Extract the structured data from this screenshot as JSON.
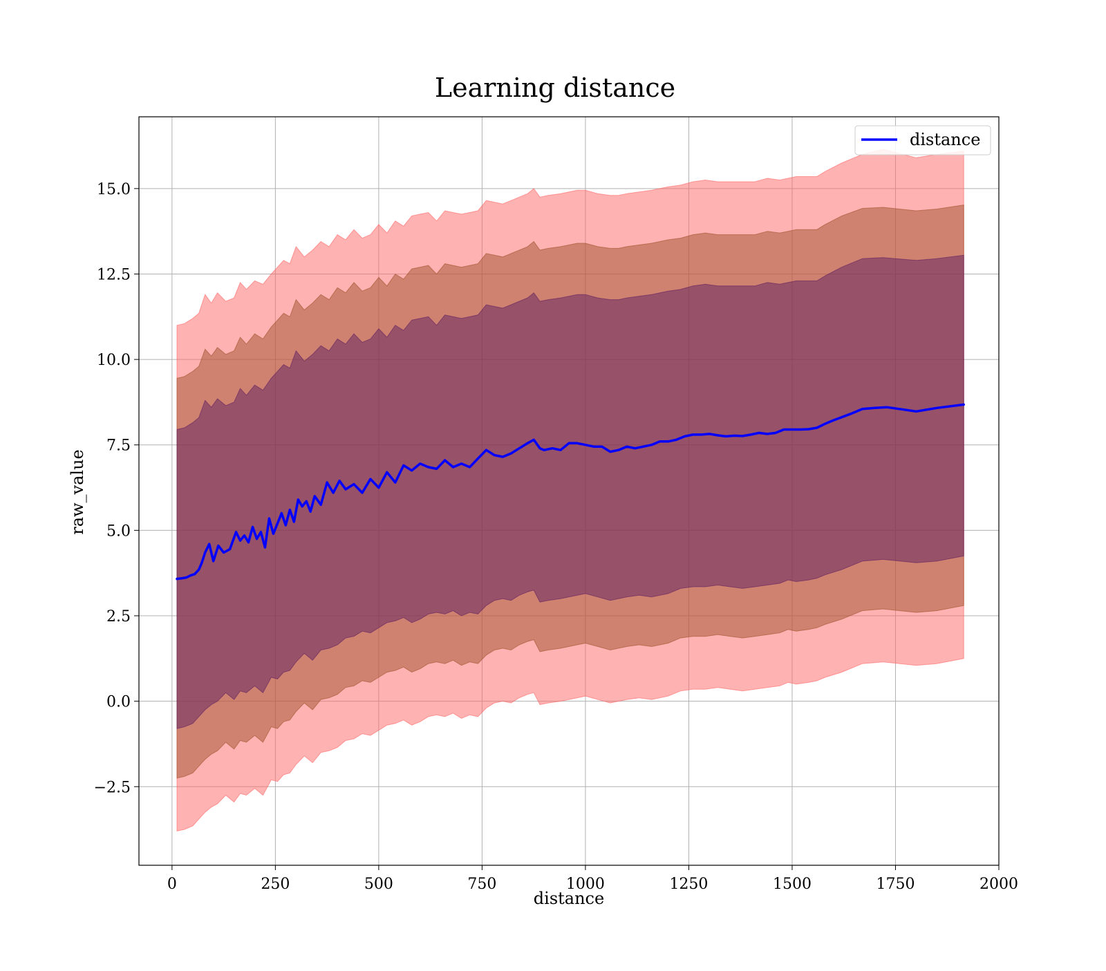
{
  "chart_data": {
    "type": "area",
    "title": "Learning distance",
    "xlabel": "distance",
    "ylabel": "raw_value",
    "xlim": [
      -80,
      2000
    ],
    "ylim": [
      -4.8,
      17.1
    ],
    "xticks": [
      0,
      250,
      500,
      750,
      1000,
      1250,
      1500,
      1750,
      2000
    ],
    "xtick_labels": [
      "0",
      "250",
      "500",
      "750",
      "1000",
      "1250",
      "1500",
      "1750",
      "2000"
    ],
    "yticks": [
      -2.5,
      0.0,
      2.5,
      5.0,
      7.5,
      10.0,
      12.5,
      15.0
    ],
    "ytick_labels": [
      "−2.5",
      "0.0",
      "2.5",
      "5.0",
      "7.5",
      "10.0",
      "12.5",
      "15.0"
    ],
    "grid": true,
    "legend_position": "top-right",
    "series": [
      {
        "name": "distance",
        "color": "#0000ff",
        "x": [
          12,
          25,
          35,
          45,
          55,
          65,
          72,
          80,
          90,
          100,
          112,
          125,
          140,
          155,
          165,
          175,
          185,
          195,
          205,
          215,
          225,
          235,
          245,
          255,
          265,
          275,
          285,
          295,
          305,
          315,
          325,
          335,
          345,
          360,
          375,
          390,
          405,
          420,
          440,
          460,
          480,
          500,
          520,
          540,
          560,
          580,
          600,
          620,
          640,
          660,
          680,
          700,
          720,
          740,
          760,
          780,
          800,
          820,
          840,
          860,
          875,
          890,
          900,
          920,
          940,
          960,
          980,
          1000,
          1020,
          1040,
          1060,
          1080,
          1100,
          1120,
          1140,
          1160,
          1180,
          1200,
          1220,
          1240,
          1260,
          1280,
          1300,
          1320,
          1340,
          1360,
          1380,
          1400,
          1420,
          1440,
          1460,
          1480,
          1500,
          1520,
          1540,
          1560,
          1580,
          1600,
          1640,
          1670,
          1700,
          1730,
          1760,
          1800,
          1850,
          1915
        ],
        "y": [
          3.58,
          3.6,
          3.62,
          3.68,
          3.72,
          3.85,
          4.05,
          4.35,
          4.6,
          4.1,
          4.55,
          4.35,
          4.45,
          4.95,
          4.7,
          4.85,
          4.65,
          5.1,
          4.75,
          4.95,
          4.5,
          5.35,
          4.9,
          5.2,
          5.5,
          5.15,
          5.6,
          5.25,
          5.9,
          5.7,
          5.85,
          5.55,
          6.0,
          5.75,
          6.4,
          6.1,
          6.45,
          6.2,
          6.35,
          6.1,
          6.5,
          6.25,
          6.7,
          6.4,
          6.9,
          6.75,
          6.95,
          6.85,
          6.8,
          7.05,
          6.85,
          6.95,
          6.85,
          7.1,
          7.35,
          7.2,
          7.15,
          7.25,
          7.4,
          7.55,
          7.65,
          7.4,
          7.35,
          7.4,
          7.35,
          7.55,
          7.55,
          7.5,
          7.45,
          7.45,
          7.3,
          7.35,
          7.45,
          7.4,
          7.45,
          7.5,
          7.6,
          7.6,
          7.65,
          7.75,
          7.8,
          7.8,
          7.82,
          7.78,
          7.75,
          7.77,
          7.76,
          7.8,
          7.85,
          7.82,
          7.85,
          7.95,
          7.95,
          7.95,
          7.96,
          8.0,
          8.12,
          8.22,
          8.4,
          8.55,
          8.58,
          8.6,
          8.55,
          8.48,
          8.58,
          8.68
        ]
      }
    ],
    "bands": [
      {
        "name": "",
        "color": "#ff6666",
        "opacity": 0.5,
        "x": [
          12,
          30,
          50,
          65,
          80,
          95,
          110,
          130,
          150,
          165,
          180,
          200,
          220,
          240,
          255,
          270,
          285,
          300,
          320,
          340,
          360,
          380,
          400,
          420,
          440,
          460,
          480,
          500,
          520,
          540,
          560,
          580,
          600,
          620,
          640,
          660,
          680,
          700,
          720,
          740,
          760,
          780,
          800,
          820,
          840,
          860,
          875,
          890,
          910,
          940,
          980,
          1000,
          1030,
          1060,
          1080,
          1100,
          1130,
          1160,
          1200,
          1230,
          1260,
          1290,
          1320,
          1350,
          1380,
          1410,
          1440,
          1470,
          1490,
          1510,
          1540,
          1560,
          1580,
          1620,
          1670,
          1720,
          1800,
          1850,
          1915
        ],
        "upper": [
          11.0,
          11.05,
          11.2,
          11.35,
          11.9,
          11.65,
          11.95,
          11.7,
          11.8,
          12.25,
          12.05,
          12.3,
          12.2,
          12.5,
          12.7,
          12.9,
          12.8,
          13.3,
          13.0,
          13.2,
          13.45,
          13.3,
          13.65,
          13.5,
          13.8,
          13.55,
          13.65,
          13.95,
          13.7,
          14.05,
          13.9,
          14.2,
          14.25,
          14.3,
          14.05,
          14.35,
          14.3,
          14.25,
          14.3,
          14.35,
          14.65,
          14.6,
          14.55,
          14.65,
          14.75,
          14.85,
          15.0,
          14.75,
          14.8,
          14.85,
          14.95,
          14.95,
          14.85,
          14.8,
          14.8,
          14.85,
          14.9,
          14.95,
          15.05,
          15.1,
          15.2,
          15.25,
          15.2,
          15.2,
          15.2,
          15.2,
          15.3,
          15.25,
          15.3,
          15.35,
          15.35,
          15.35,
          15.5,
          15.75,
          16.0,
          16.15,
          15.9,
          16.0,
          16.1
        ],
        "lower": [
          -3.8,
          -3.75,
          -3.65,
          -3.45,
          -3.25,
          -3.1,
          -3.0,
          -2.75,
          -2.95,
          -2.7,
          -2.75,
          -2.55,
          -2.75,
          -2.3,
          -2.35,
          -2.15,
          -2.1,
          -1.85,
          -1.6,
          -1.8,
          -1.5,
          -1.45,
          -1.35,
          -1.15,
          -1.1,
          -0.95,
          -1.0,
          -0.85,
          -0.7,
          -0.65,
          -0.55,
          -0.7,
          -0.6,
          -0.45,
          -0.4,
          -0.45,
          -0.35,
          -0.5,
          -0.4,
          -0.45,
          -0.2,
          -0.05,
          0.0,
          -0.05,
          0.1,
          0.2,
          0.25,
          -0.1,
          -0.05,
          0.0,
          0.1,
          0.15,
          0.05,
          -0.05,
          0.0,
          0.05,
          0.1,
          0.05,
          0.15,
          0.3,
          0.35,
          0.35,
          0.4,
          0.35,
          0.3,
          0.35,
          0.4,
          0.45,
          0.55,
          0.5,
          0.55,
          0.6,
          0.7,
          0.85,
          1.1,
          1.15,
          1.05,
          1.1,
          1.25
        ]
      },
      {
        "name": "",
        "color": "#a0522d",
        "opacity": 0.5,
        "x": [
          12,
          30,
          50,
          65,
          80,
          95,
          110,
          130,
          150,
          165,
          180,
          200,
          220,
          240,
          255,
          270,
          285,
          300,
          320,
          340,
          360,
          380,
          400,
          420,
          440,
          460,
          480,
          500,
          520,
          540,
          560,
          580,
          600,
          620,
          640,
          660,
          680,
          700,
          720,
          740,
          760,
          780,
          800,
          820,
          840,
          860,
          875,
          890,
          910,
          940,
          980,
          1000,
          1030,
          1060,
          1080,
          1100,
          1130,
          1160,
          1200,
          1230,
          1260,
          1290,
          1320,
          1350,
          1380,
          1410,
          1440,
          1470,
          1490,
          1510,
          1540,
          1560,
          1580,
          1620,
          1670,
          1720,
          1800,
          1850,
          1915
        ],
        "upper": [
          9.45,
          9.5,
          9.65,
          9.8,
          10.3,
          10.1,
          10.35,
          10.15,
          10.25,
          10.65,
          10.45,
          10.75,
          10.6,
          10.95,
          11.15,
          11.35,
          11.25,
          11.75,
          11.45,
          11.65,
          11.9,
          11.75,
          12.1,
          11.95,
          12.25,
          12.0,
          12.1,
          12.4,
          12.15,
          12.5,
          12.35,
          12.65,
          12.7,
          12.75,
          12.5,
          12.8,
          12.75,
          12.7,
          12.75,
          12.8,
          13.1,
          13.05,
          13.0,
          13.1,
          13.2,
          13.3,
          13.45,
          13.2,
          13.25,
          13.3,
          13.4,
          13.4,
          13.3,
          13.25,
          13.25,
          13.3,
          13.35,
          13.4,
          13.5,
          13.55,
          13.65,
          13.7,
          13.65,
          13.65,
          13.65,
          13.65,
          13.75,
          13.7,
          13.75,
          13.8,
          13.8,
          13.8,
          13.95,
          14.2,
          14.42,
          14.45,
          14.35,
          14.4,
          14.52
        ],
        "lower": [
          -2.25,
          -2.2,
          -2.1,
          -1.9,
          -1.7,
          -1.55,
          -1.45,
          -1.2,
          -1.4,
          -1.15,
          -1.2,
          -1.0,
          -1.2,
          -0.75,
          -0.8,
          -0.6,
          -0.55,
          -0.3,
          -0.05,
          -0.25,
          0.05,
          0.1,
          0.2,
          0.4,
          0.45,
          0.6,
          0.55,
          0.7,
          0.85,
          0.9,
          1.0,
          0.85,
          0.95,
          1.1,
          1.15,
          1.1,
          1.2,
          1.05,
          1.15,
          1.1,
          1.35,
          1.5,
          1.55,
          1.5,
          1.65,
          1.75,
          1.8,
          1.45,
          1.5,
          1.55,
          1.65,
          1.7,
          1.6,
          1.5,
          1.55,
          1.6,
          1.65,
          1.6,
          1.7,
          1.85,
          1.9,
          1.9,
          1.95,
          1.9,
          1.85,
          1.9,
          1.95,
          2.0,
          2.1,
          2.05,
          2.1,
          2.15,
          2.25,
          2.4,
          2.65,
          2.7,
          2.6,
          2.65,
          2.8
        ]
      },
      {
        "name": "",
        "color": "#602060",
        "opacity": 0.5,
        "x": [
          12,
          30,
          50,
          65,
          80,
          95,
          110,
          130,
          150,
          165,
          180,
          200,
          220,
          240,
          255,
          270,
          285,
          300,
          320,
          340,
          360,
          380,
          400,
          420,
          440,
          460,
          480,
          500,
          520,
          540,
          560,
          580,
          600,
          620,
          640,
          660,
          680,
          700,
          720,
          740,
          760,
          780,
          800,
          820,
          840,
          860,
          875,
          890,
          910,
          940,
          980,
          1000,
          1030,
          1060,
          1080,
          1100,
          1130,
          1160,
          1200,
          1230,
          1260,
          1290,
          1320,
          1350,
          1380,
          1410,
          1440,
          1470,
          1490,
          1510,
          1540,
          1560,
          1580,
          1620,
          1670,
          1720,
          1800,
          1850,
          1915
        ],
        "upper": [
          7.95,
          8.0,
          8.15,
          8.3,
          8.8,
          8.6,
          8.85,
          8.65,
          8.75,
          9.15,
          8.95,
          9.25,
          9.1,
          9.45,
          9.65,
          9.85,
          9.75,
          10.25,
          9.95,
          10.15,
          10.4,
          10.25,
          10.6,
          10.45,
          10.75,
          10.5,
          10.6,
          10.9,
          10.65,
          11.0,
          10.85,
          11.15,
          11.2,
          11.25,
          11.0,
          11.3,
          11.25,
          11.2,
          11.25,
          11.3,
          11.6,
          11.55,
          11.5,
          11.6,
          11.7,
          11.8,
          11.95,
          11.7,
          11.75,
          11.8,
          11.9,
          11.9,
          11.8,
          11.75,
          11.75,
          11.8,
          11.85,
          11.9,
          12.0,
          12.05,
          12.15,
          12.2,
          12.15,
          12.15,
          12.15,
          12.15,
          12.25,
          12.2,
          12.25,
          12.3,
          12.3,
          12.3,
          12.45,
          12.7,
          12.95,
          12.98,
          12.9,
          12.95,
          13.05
        ],
        "lower": [
          -0.8,
          -0.75,
          -0.65,
          -0.45,
          -0.25,
          -0.1,
          0.0,
          0.25,
          0.05,
          0.3,
          0.25,
          0.45,
          0.25,
          0.7,
          0.65,
          0.85,
          0.9,
          1.15,
          1.4,
          1.2,
          1.5,
          1.55,
          1.65,
          1.85,
          1.9,
          2.05,
          2.0,
          2.15,
          2.3,
          2.35,
          2.45,
          2.3,
          2.4,
          2.55,
          2.6,
          2.55,
          2.65,
          2.5,
          2.6,
          2.55,
          2.8,
          2.95,
          3.0,
          2.95,
          3.1,
          3.2,
          3.25,
          2.9,
          2.95,
          3.0,
          3.1,
          3.15,
          3.05,
          2.95,
          3.0,
          3.05,
          3.1,
          3.05,
          3.15,
          3.3,
          3.35,
          3.35,
          3.4,
          3.35,
          3.3,
          3.35,
          3.4,
          3.45,
          3.55,
          3.5,
          3.55,
          3.6,
          3.7,
          3.85,
          4.1,
          4.15,
          4.05,
          4.1,
          4.25
        ]
      }
    ]
  }
}
